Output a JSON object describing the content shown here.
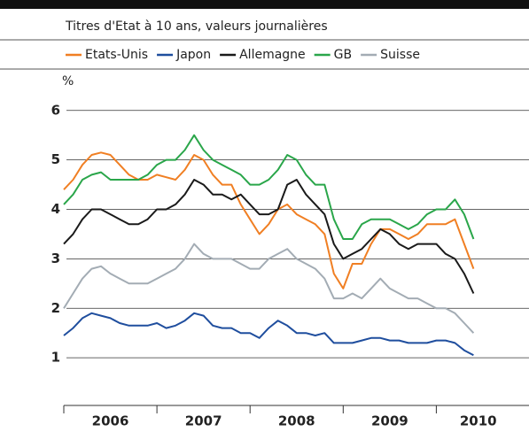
{
  "chart_data": {
    "type": "line",
    "title": "Titres d'Etat à 10 ans, valeurs journalières",
    "y_label": "%",
    "x": [
      2006.0,
      2006.1,
      2006.2,
      2006.3,
      2006.4,
      2006.5,
      2006.6,
      2006.7,
      2006.8,
      2006.9,
      2007.0,
      2007.1,
      2007.2,
      2007.3,
      2007.4,
      2007.5,
      2007.6,
      2007.7,
      2007.8,
      2007.9,
      2008.0,
      2008.1,
      2008.2,
      2008.3,
      2008.4,
      2008.5,
      2008.6,
      2008.7,
      2008.8,
      2008.9,
      2009.0,
      2009.1,
      2009.2,
      2009.3,
      2009.4,
      2009.5,
      2009.6,
      2009.7,
      2009.8,
      2009.9,
      2010.0,
      2010.1,
      2010.2,
      2010.3,
      2010.4
    ],
    "series": [
      {
        "name": "Etats-Unis",
        "color": "#f07f23",
        "values": [
          4.4,
          4.6,
          4.9,
          5.1,
          5.15,
          5.1,
          4.9,
          4.7,
          4.6,
          4.6,
          4.7,
          4.65,
          4.6,
          4.8,
          5.1,
          5.0,
          4.7,
          4.5,
          4.5,
          4.1,
          3.8,
          3.5,
          3.7,
          4.0,
          4.1,
          3.9,
          3.8,
          3.7,
          3.5,
          2.7,
          2.4,
          2.9,
          2.9,
          3.3,
          3.6,
          3.6,
          3.5,
          3.4,
          3.5,
          3.7,
          3.7,
          3.7,
          3.8,
          3.3,
          2.8
        ]
      },
      {
        "name": "Japon",
        "color": "#1f4e9e",
        "values": [
          1.45,
          1.6,
          1.8,
          1.9,
          1.85,
          1.8,
          1.7,
          1.65,
          1.65,
          1.65,
          1.7,
          1.6,
          1.65,
          1.75,
          1.9,
          1.85,
          1.65,
          1.6,
          1.6,
          1.5,
          1.5,
          1.4,
          1.6,
          1.75,
          1.65,
          1.5,
          1.5,
          1.45,
          1.5,
          1.3,
          1.3,
          1.3,
          1.35,
          1.4,
          1.4,
          1.35,
          1.35,
          1.3,
          1.3,
          1.3,
          1.35,
          1.35,
          1.3,
          1.15,
          1.05
        ]
      },
      {
        "name": "Allemagne",
        "color": "#1a1a1a",
        "values": [
          3.3,
          3.5,
          3.8,
          4.0,
          4.0,
          3.9,
          3.8,
          3.7,
          3.7,
          3.8,
          4.0,
          4.0,
          4.1,
          4.3,
          4.6,
          4.5,
          4.3,
          4.3,
          4.2,
          4.3,
          4.1,
          3.9,
          3.9,
          4.0,
          4.5,
          4.6,
          4.3,
          4.1,
          3.9,
          3.3,
          3.0,
          3.1,
          3.2,
          3.4,
          3.6,
          3.5,
          3.3,
          3.2,
          3.3,
          3.3,
          3.3,
          3.1,
          3.0,
          2.7,
          2.3
        ]
      },
      {
        "name": "GB",
        "color": "#2aa64a",
        "values": [
          4.1,
          4.3,
          4.6,
          4.7,
          4.75,
          4.6,
          4.6,
          4.6,
          4.6,
          4.7,
          4.9,
          5.0,
          5.0,
          5.2,
          5.5,
          5.2,
          5.0,
          4.9,
          4.8,
          4.7,
          4.5,
          4.5,
          4.6,
          4.8,
          5.1,
          5.0,
          4.7,
          4.5,
          4.5,
          3.8,
          3.4,
          3.4,
          3.7,
          3.8,
          3.8,
          3.8,
          3.7,
          3.6,
          3.7,
          3.9,
          4.0,
          4.0,
          4.2,
          3.9,
          3.4
        ]
      },
      {
        "name": "Suisse",
        "color": "#a3acb4",
        "values": [
          2.0,
          2.3,
          2.6,
          2.8,
          2.85,
          2.7,
          2.6,
          2.5,
          2.5,
          2.5,
          2.6,
          2.7,
          2.8,
          3.0,
          3.3,
          3.1,
          3.0,
          3.0,
          3.0,
          2.9,
          2.8,
          2.8,
          3.0,
          3.1,
          3.2,
          3.0,
          2.9,
          2.8,
          2.6,
          2.2,
          2.2,
          2.3,
          2.2,
          2.4,
          2.6,
          2.4,
          2.3,
          2.2,
          2.2,
          2.1,
          2.0,
          2.0,
          1.9,
          1.7,
          1.5
        ]
      }
    ],
    "xlim": [
      2006,
      2010.9
    ],
    "xticks": [
      {
        "value": 2006.5,
        "label": "2006"
      },
      {
        "value": 2007.5,
        "label": "2007"
      },
      {
        "value": 2008.5,
        "label": "2008"
      },
      {
        "value": 2009.5,
        "label": "2009"
      },
      {
        "value": 2010.45,
        "label": "2010"
      }
    ],
    "xminor_ticks": [
      2006,
      2007,
      2008,
      2009,
      2010
    ],
    "ylim": [
      0,
      6.3
    ],
    "yticks": [
      1,
      2,
      3,
      4,
      5,
      6
    ],
    "grid": true
  }
}
